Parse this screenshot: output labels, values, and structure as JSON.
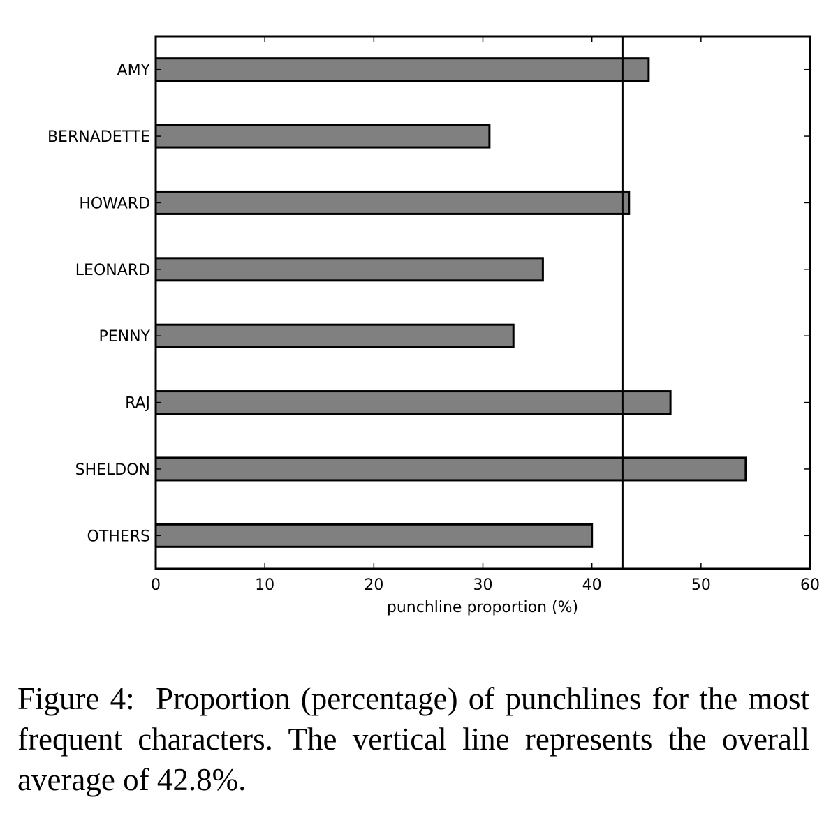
{
  "chart_data": {
    "type": "bar",
    "orientation": "horizontal",
    "categories": [
      "AMY",
      "BERNADETTE",
      "HOWARD",
      "LEONARD",
      "PENNY",
      "RAJ",
      "SHELDON",
      "OTHERS"
    ],
    "values": [
      45.2,
      30.6,
      43.4,
      35.5,
      32.8,
      47.2,
      54.1,
      40.0
    ],
    "xlabel": "punchline proportion (%)",
    "ylabel": "",
    "xlim": [
      0,
      60
    ],
    "xticks": [
      0,
      10,
      20,
      30,
      40,
      50,
      60
    ],
    "reference_line": {
      "x": 42.8
    },
    "bar_color": "#808080",
    "edge_color": "#000000",
    "grid": false
  },
  "caption": {
    "label": "Figure 4:",
    "text": "Proportion (percentage) of punchlines for the most frequent characters. The vertical line represents the overall average of 42.8%."
  }
}
